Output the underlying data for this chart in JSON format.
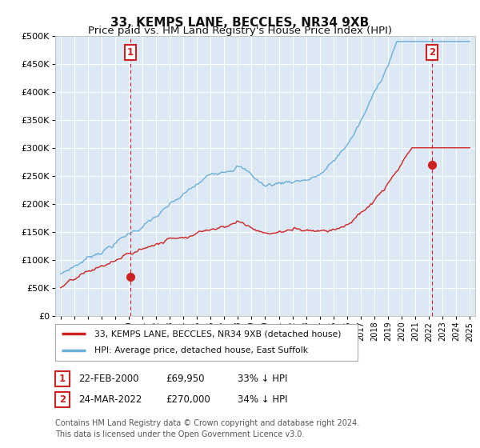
{
  "title": "33, KEMPS LANE, BECCLES, NR34 9XB",
  "subtitle": "Price paid vs. HM Land Registry's House Price Index (HPI)",
  "ylim": [
    0,
    500000
  ],
  "yticks": [
    0,
    50000,
    100000,
    150000,
    200000,
    250000,
    300000,
    350000,
    400000,
    450000,
    500000
  ],
  "ytick_labels": [
    "£0",
    "£50K",
    "£100K",
    "£150K",
    "£200K",
    "£250K",
    "£300K",
    "£350K",
    "£400K",
    "£450K",
    "£500K"
  ],
  "hpi_color": "#6baed6",
  "price_color": "#cc2222",
  "vline_color": "#cc2222",
  "background_color": "#ffffff",
  "plot_bg_color": "#dce9f5",
  "grid_color": "#ffffff",
  "sale1_date": 2000.12,
  "sale1_price": 69950,
  "sale2_date": 2022.22,
  "sale2_price": 270000,
  "legend_label1": "33, KEMPS LANE, BECCLES, NR34 9XB (detached house)",
  "legend_label2": "HPI: Average price, detached house, East Suffolk",
  "table_row1": [
    "1",
    "22-FEB-2000",
    "£69,950",
    "33% ↓ HPI"
  ],
  "table_row2": [
    "2",
    "24-MAR-2022",
    "£270,000",
    "34% ↓ HPI"
  ],
  "footer": "Contains HM Land Registry data © Crown copyright and database right 2024.\nThis data is licensed under the Open Government Licence v3.0.",
  "title_fontsize": 11,
  "subtitle_fontsize": 9.5,
  "tick_fontsize": 8
}
